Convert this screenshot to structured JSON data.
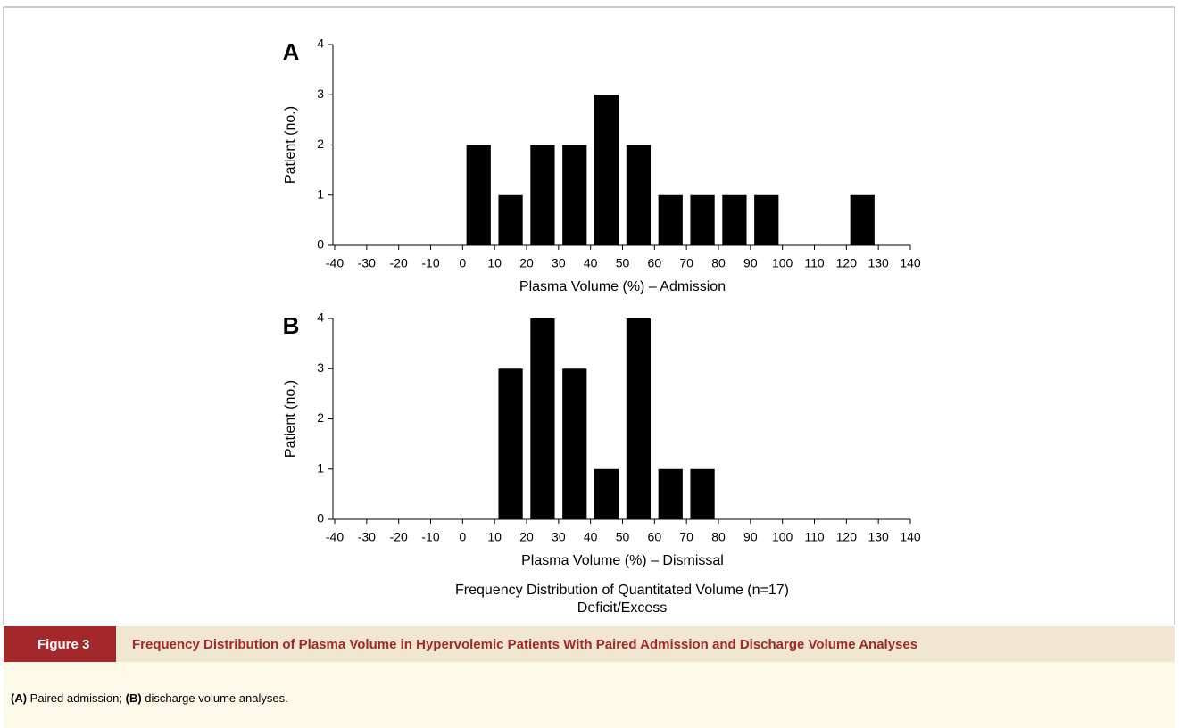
{
  "chart_data": [
    {
      "type": "histogram",
      "panel": "A",
      "xlabel": "Plasma Volume (%) – Admission",
      "ylabel": "Patient (no.)",
      "bins": [
        0,
        10,
        20,
        30,
        40,
        50,
        60,
        70,
        80,
        90,
        100,
        110,
        120,
        130
      ],
      "values": [
        2,
        1,
        2,
        2,
        3,
        2,
        1,
        1,
        1,
        1,
        0,
        0,
        1
      ],
      "color": "#000000",
      "xlim": [
        -40,
        140
      ],
      "xticks": [
        -40,
        -30,
        -20,
        -10,
        0,
        10,
        20,
        30,
        40,
        50,
        60,
        70,
        80,
        90,
        100,
        110,
        120,
        130,
        140
      ],
      "ylim": [
        0,
        4
      ],
      "yticks": [
        0,
        1,
        2,
        3,
        4
      ]
    },
    {
      "type": "histogram",
      "panel": "B",
      "xlabel": "Plasma Volume (%) – Dismissal",
      "ylabel": "Patient (no.)",
      "bins": [
        10,
        20,
        30,
        40,
        50,
        60,
        70,
        80
      ],
      "values": [
        3,
        4,
        3,
        1,
        4,
        1,
        1
      ],
      "color": "#000000",
      "xlim": [
        -40,
        140
      ],
      "xticks": [
        -40,
        -30,
        -20,
        -10,
        0,
        10,
        20,
        30,
        40,
        50,
        60,
        70,
        80,
        90,
        100,
        110,
        120,
        130,
        140
      ],
      "ylim": [
        0,
        4
      ],
      "yticks": [
        0,
        1,
        2,
        3,
        4
      ]
    }
  ],
  "figure": {
    "footnote": [
      "Frequency Distribution of Quantitated Volume (n=17)",
      "Deficit/Excess"
    ],
    "label": "Figure 3",
    "title": "Frequency Distribution of Plasma Volume in Hypervolemic Patients With Paired Admission and Discharge Volume Analyses",
    "caption": [
      "(A)",
      " Paired admission; ",
      "(B)",
      " discharge volume analyses."
    ]
  }
}
